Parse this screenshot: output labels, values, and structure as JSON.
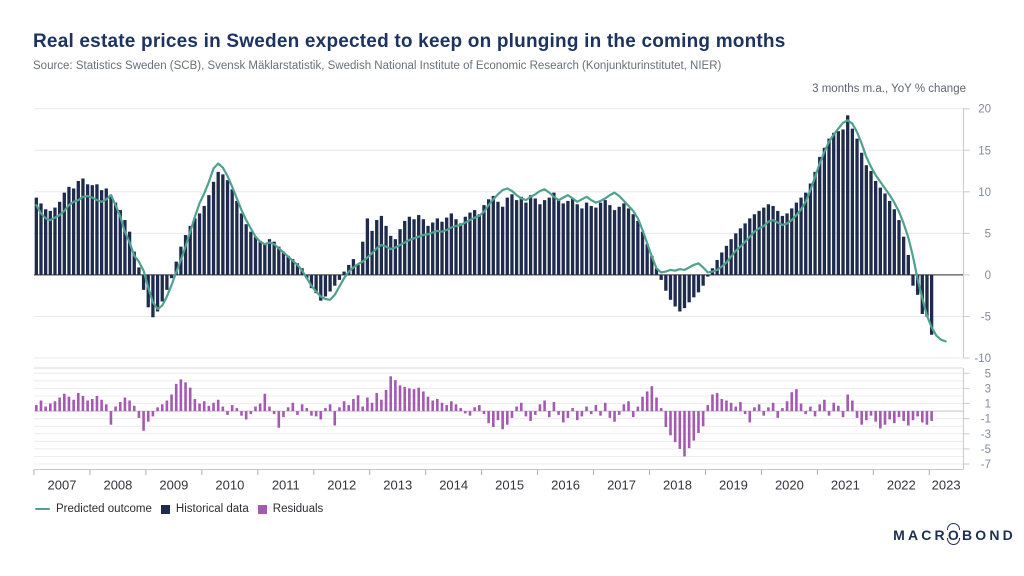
{
  "header": {
    "title": "Real estate prices in Sweden expected to keep on plunging in the coming months",
    "source": "Source: Statistics Sweden (SCB), Svensk Mäklarstatistik, Swedish National Institute of Economic Research (Konjunkturinstitutet, NIER)",
    "axis_note": "3 months m.a., YoY % change"
  },
  "legend": {
    "items": [
      {
        "label": "Predicted outcome",
        "swatch": "line",
        "color": "#4fa28e"
      },
      {
        "label": "Historical data",
        "swatch": "square",
        "color": "#1f2b4d"
      },
      {
        "label": "Residuals",
        "swatch": "square",
        "color": "#a35ab0"
      }
    ]
  },
  "branding": {
    "logo_prefix": "MACR",
    "logo_o": "O",
    "logo_suffix": "BOND"
  },
  "chart_data": [
    {
      "panel": "main",
      "type": "bar",
      "unit": "3 months m.a., YoY % change",
      "x_start": "2007-01",
      "x_interval": "month",
      "ylim": [
        -10,
        20
      ],
      "yticks": [
        20,
        15,
        10,
        5,
        0,
        -5,
        -10
      ],
      "grid": true,
      "legend_position": "bottom",
      "series": [
        {
          "name": "Historical data",
          "type": "bar",
          "color": "#1f2b4d",
          "values": [
            9.3,
            8.6,
            7.9,
            7.7,
            8.1,
            8.8,
            9.9,
            10.6,
            10.4,
            11.3,
            11.6,
            10.9,
            10.8,
            10.9,
            10.2,
            10.4,
            9.6,
            8.7,
            7.8,
            6.6,
            5.2,
            2.8,
            0.9,
            -1.8,
            -3.9,
            -5.1,
            -4.4,
            -3.2,
            -1.8,
            -0.4,
            1.6,
            3.4,
            4.8,
            5.9,
            6.8,
            7.4,
            8.3,
            9.6,
            11.2,
            12.4,
            12.1,
            11.4,
            10.3,
            8.9,
            7.4,
            6.1,
            5.2,
            4.6,
            4.1,
            3.8,
            4.3,
            4.0,
            3.4,
            2.8,
            2.3,
            1.9,
            1.4,
            0.8,
            -0.4,
            -1.6,
            -2.2,
            -3.1,
            -2.6,
            -2.0,
            -1.3,
            -0.6,
            0.4,
            1.2,
            1.9,
            1.2,
            4.0,
            6.8,
            5.3,
            6.6,
            7.1,
            5.9,
            4.7,
            4.3,
            5.5,
            6.5,
            7.0,
            6.7,
            7.2,
            6.7,
            5.9,
            6.3,
            6.8,
            6.4,
            6.9,
            7.4,
            6.7,
            6.2,
            7.0,
            7.5,
            7.8,
            7.3,
            8.4,
            9.1,
            9.5,
            8.8,
            8.2,
            9.3,
            9.7,
            9.0,
            9.4,
            8.7,
            9.6,
            9.2,
            8.5,
            9.0,
            9.3,
            9.9,
            9.1,
            8.6,
            8.9,
            9.2,
            8.5,
            8.0,
            8.7,
            8.3,
            8.1,
            8.7,
            9.0,
            8.4,
            7.8,
            8.2,
            8.6,
            8.0,
            7.3,
            6.5,
            5.2,
            3.7,
            2.3,
            0.8,
            -0.6,
            -1.9,
            -3.0,
            -3.8,
            -4.4,
            -4.0,
            -3.3,
            -2.7,
            -2.1,
            -1.3,
            -0.2,
            0.8,
            1.8,
            2.7,
            3.5,
            4.3,
            5.0,
            5.6,
            6.2,
            6.8,
            7.3,
            7.7,
            8.1,
            8.5,
            8.3,
            7.7,
            7.1,
            7.4,
            8.0,
            8.7,
            9.3,
            9.9,
            11.0,
            12.4,
            14.2,
            15.3,
            16.4,
            17.1,
            17.3,
            17.5,
            19.2,
            17.6,
            16.4,
            14.7,
            13.2,
            12.5,
            11.3,
            10.5,
            9.8,
            8.9,
            7.9,
            6.6,
            4.6,
            2.4,
            -1.3,
            -2.4,
            -4.7,
            -5.0,
            -7.2
          ]
        },
        {
          "name": "Predicted outcome",
          "type": "line",
          "color": "#4fa28e",
          "values": [
            8.4,
            7.4,
            6.8,
            6.6,
            6.9,
            7.2,
            7.7,
            8.4,
            8.8,
            9.0,
            9.4,
            9.5,
            9.3,
            9.0,
            8.8,
            9.1,
            9.6,
            8.4,
            7.0,
            5.2,
            3.9,
            2.3,
            1.6,
            0.5,
            -1.5,
            -3.3,
            -4.1,
            -3.7,
            -2.6,
            -1.2,
            0.3,
            1.8,
            3.4,
            5.2,
            7.0,
            8.6,
            9.8,
            11.2,
            12.8,
            13.4,
            12.9,
            11.9,
            10.6,
            9.2,
            7.8,
            6.6,
            5.6,
            4.6,
            4.0,
            3.7,
            3.9,
            3.7,
            3.2,
            2.7,
            2.2,
            1.7,
            1.2,
            0.5,
            -0.4,
            -1.3,
            -2.0,
            -2.6,
            -2.9,
            -3.0,
            -2.4,
            -1.4,
            -0.4,
            0.4,
            0.9,
            1.3,
            1.6,
            2.1,
            2.6,
            3.2,
            3.6,
            3.4,
            3.1,
            3.3,
            3.6,
            3.9,
            4.2,
            4.4,
            4.6,
            4.8,
            4.9,
            5.1,
            5.3,
            5.2,
            5.4,
            5.7,
            5.9,
            6.0,
            6.3,
            6.6,
            6.9,
            7.1,
            7.6,
            8.4,
            9.1,
            9.7,
            10.2,
            10.4,
            10.1,
            9.6,
            9.2,
            9.0,
            9.4,
            9.7,
            10.1,
            10.3,
            9.9,
            9.4,
            9.0,
            9.3,
            9.6,
            9.2,
            8.8,
            9.1,
            9.4,
            9.0,
            8.7,
            8.9,
            9.2,
            9.6,
            9.9,
            9.5,
            8.9,
            8.3,
            7.7,
            6.8,
            5.4,
            3.8,
            2.2,
            0.8,
            0.3,
            0.4,
            0.6,
            0.5,
            0.7,
            0.6,
            0.9,
            1.2,
            1.4,
            0.9,
            0.3,
            0.4,
            0.6,
            1.0,
            1.5,
            2.2,
            2.9,
            3.4,
            4.0,
            4.6,
            5.2,
            5.6,
            5.9,
            6.4,
            6.6,
            6.3,
            6.0,
            6.2,
            6.6,
            7.2,
            7.9,
            8.8,
            10.2,
            11.8,
            13.4,
            14.8,
            16.0,
            16.9,
            17.6,
            18.3,
            18.6,
            18.2,
            17.2,
            15.8,
            14.2,
            13.0,
            12.0,
            11.2,
            10.4,
            9.6,
            8.7,
            7.6,
            6.2,
            4.5,
            2.2,
            -0.5,
            -2.8,
            -4.9,
            -6.3,
            -7.3,
            -7.8,
            -8.0
          ]
        }
      ]
    },
    {
      "panel": "residuals",
      "type": "bar",
      "x_start": "2007-01",
      "x_interval": "month",
      "ylim": [
        -7.8,
        5.7
      ],
      "yticks": [
        5,
        3,
        1,
        -1,
        -3,
        -5,
        -7
      ],
      "grid": true,
      "series": [
        {
          "name": "Residuals",
          "type": "bar",
          "color": "#a35ab0",
          "values": [
            0.8,
            1.4,
            0.6,
            1.0,
            1.3,
            1.8,
            2.3,
            1.9,
            1.5,
            2.4,
            2.0,
            1.4,
            1.6,
            2.0,
            1.5,
            0.9,
            -1.8,
            0.6,
            1.2,
            1.8,
            1.4,
            0.7,
            -0.9,
            -2.6,
            -1.4,
            -0.7,
            0.5,
            0.9,
            1.4,
            2.2,
            3.6,
            4.2,
            3.8,
            3.1,
            1.6,
            1.0,
            1.3,
            0.7,
            1.1,
            1.5,
            0.6,
            -0.5,
            0.8,
            0.4,
            -0.6,
            -1.1,
            -0.4,
            0.6,
            1.0,
            2.3,
            0.6,
            -0.4,
            -2.2,
            -0.8,
            0.5,
            1.1,
            -0.5,
            0.9,
            0.4,
            -0.6,
            -0.7,
            -1.1,
            0.4,
            0.9,
            -1.9,
            0.5,
            1.3,
            0.8,
            1.6,
            2.1,
            0.6,
            1.8,
            1.1,
            2.4,
            1.5,
            2.8,
            4.6,
            4.1,
            3.4,
            3.2,
            3.0,
            2.9,
            3.1,
            2.6,
            1.9,
            1.4,
            1.6,
            1.1,
            0.8,
            1.3,
            0.9,
            0.4,
            -0.3,
            -0.6,
            0.5,
            0.8,
            -0.4,
            -1.6,
            -2.1,
            -1.2,
            -2.4,
            -1.8,
            -0.9,
            0.6,
            1.1,
            -0.7,
            -1.3,
            -0.5,
            0.9,
            1.4,
            -0.8,
            1.2,
            -0.5,
            -1.5,
            -0.9,
            0.4,
            -1.2,
            -0.7,
            0.6,
            -0.4,
            0.8,
            -0.6,
            1.1,
            -0.9,
            -1.4,
            -0.5,
            0.9,
            1.3,
            -0.8,
            0.6,
            1.9,
            2.6,
            3.3,
            1.8,
            0.4,
            -2.1,
            -3.2,
            -4.1,
            -5.0,
            -6.0,
            -4.9,
            -3.9,
            -2.9,
            -2.0,
            0.8,
            2.2,
            2.4,
            1.6,
            1.4,
            1.1,
            0.6,
            1.2,
            -0.4,
            -1.5,
            0.5,
            0.9,
            -0.6,
            0.5,
            1.1,
            -0.9,
            0.4,
            1.3,
            2.5,
            2.9,
            1.0,
            -0.4,
            0.6,
            -0.7,
            0.9,
            1.5,
            -0.6,
            1.1,
            0.7,
            -0.8,
            2.2,
            1.4,
            -0.9,
            -1.8,
            -1.2,
            -0.6,
            -1.4,
            -2.3,
            -1.8,
            -1.1,
            -1.6,
            -0.8,
            -1.3,
            -1.9,
            -1.2,
            -0.7,
            -1.5,
            -1.8,
            -1.3
          ]
        }
      ]
    }
  ],
  "x_axis": {
    "years": [
      "2007",
      "2008",
      "2009",
      "2010",
      "2011",
      "2012",
      "2013",
      "2014",
      "2015",
      "2016",
      "2017",
      "2018",
      "2019",
      "2020",
      "2021",
      "2022",
      "2023"
    ]
  },
  "colors": {
    "title": "#1d3460",
    "bar_navy": "#1f2b4d",
    "line_teal": "#4fa28e",
    "residual_purple": "#a35ab0",
    "gridline": "#e8e8ed",
    "zero_line": "#50505a",
    "axis_text": "#84899b"
  }
}
